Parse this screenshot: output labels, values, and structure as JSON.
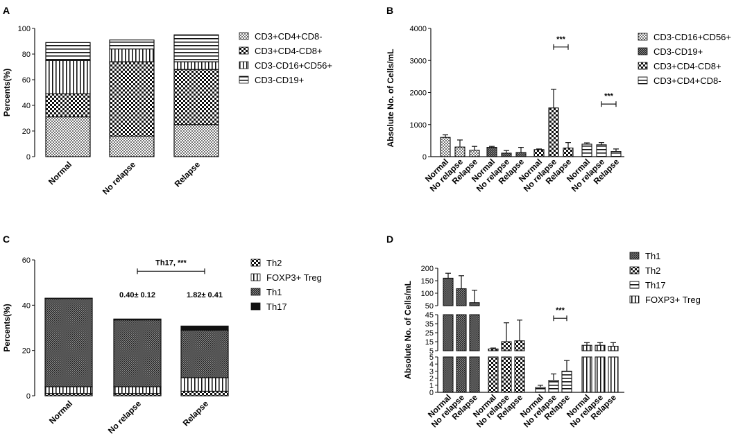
{
  "panels": {
    "a": {
      "label": "A"
    },
    "b": {
      "label": "B"
    },
    "c": {
      "label": "C"
    },
    "d": {
      "label": "D"
    }
  },
  "colors": {
    "ink": "#111111",
    "fill": "#ffffff",
    "solid": "#111111"
  },
  "chart_data": [
    {
      "id": "A",
      "type": "bar",
      "stacked": true,
      "title": "",
      "xlabel": "",
      "ylabel": "Percents(%)",
      "ylim": [
        0,
        100
      ],
      "yticks": [
        0,
        20,
        40,
        60,
        80,
        100
      ],
      "categories": [
        "Normal",
        "No relapse",
        "Relapse"
      ],
      "series": [
        {
          "name": "CD3+CD4+CD8-",
          "pattern": "dots",
          "values": [
            31,
            16,
            25
          ]
        },
        {
          "name": "CD3+CD4-CD8+",
          "pattern": "checker",
          "values": [
            18,
            58,
            43
          ]
        },
        {
          "name": "CD3-CD16+CD56+",
          "pattern": "vlines",
          "values": [
            26,
            10,
            6
          ]
        },
        {
          "name": "CD3-CD19+",
          "pattern": "hlines",
          "values": [
            14,
            7,
            21
          ]
        }
      ],
      "legend": [
        "CD3+CD4+CD8-",
        "CD3+CD4-CD8+",
        "CD3-CD16+CD56+",
        "CD3-CD19+"
      ],
      "legend_patterns": [
        "dots",
        "checker",
        "vlines",
        "hlines"
      ]
    },
    {
      "id": "B",
      "type": "bar",
      "title": "",
      "xlabel": "",
      "ylabel": "Absolute No. of Cells/mL",
      "ylim": [
        0,
        4000
      ],
      "yticks": [
        0,
        1000,
        2000,
        3000,
        4000
      ],
      "groups": [
        {
          "name": "CD3-CD16+CD56+",
          "pattern": "dots",
          "categories": [
            "Normal",
            "No relapse",
            "Relapse"
          ],
          "values": [
            600,
            300,
            200
          ],
          "errors": [
            80,
            220,
            120
          ]
        },
        {
          "name": "CD3-CD19+",
          "pattern": "dense",
          "categories": [
            "Normal",
            "No relapse",
            "Relapse"
          ],
          "values": [
            290,
            110,
            130
          ],
          "errors": [
            30,
            80,
            160
          ]
        },
        {
          "name": "CD3+CD4-CD8+",
          "pattern": "checker",
          "categories": [
            "Normal",
            "No relapse",
            "Relapse"
          ],
          "values": [
            220,
            1520,
            270
          ],
          "errors": [
            20,
            580,
            170
          ]
        },
        {
          "name": "CD3+CD4+CD8-",
          "pattern": "hlines",
          "categories": [
            "Normal",
            "No relapse",
            "Relapse"
          ],
          "values": [
            390,
            370,
            160
          ],
          "errors": [
            40,
            70,
            80
          ]
        }
      ],
      "significance": [
        {
          "group": 2,
          "from": 1,
          "to": 2,
          "y": 3420,
          "text": "***"
        },
        {
          "group": 3,
          "from": 1,
          "to": 2,
          "y": 1640,
          "text": "***"
        }
      ],
      "legend": [
        "CD3-CD16+CD56+",
        "CD3-CD19+",
        "CD3+CD4-CD8+",
        "CD3+CD4+CD8-"
      ],
      "legend_patterns": [
        "dots",
        "dense",
        "checker",
        "hlines"
      ]
    },
    {
      "id": "C",
      "type": "bar",
      "stacked": true,
      "title": "",
      "xlabel": "",
      "ylabel": "Percents(%)",
      "ylim": [
        0,
        60
      ],
      "yticks": [
        0,
        20,
        40,
        60
      ],
      "categories": [
        "Normal",
        "No relapse",
        "Relapse"
      ],
      "series": [
        {
          "name": "Th2",
          "pattern": "checker",
          "values": [
            1,
            1,
            2
          ]
        },
        {
          "name": "FOXP3+ Treg",
          "pattern": "vlines",
          "values": [
            3,
            3,
            6
          ]
        },
        {
          "name": "Th1",
          "pattern": "dense",
          "values": [
            39,
            29.5,
            21
          ]
        },
        {
          "name": "Th17",
          "pattern": "solid",
          "values": [
            0.1,
            0.4,
            1.8
          ]
        }
      ],
      "annotations": [
        {
          "text": "0.40± 0.12",
          "category": 1,
          "y": 43.5
        },
        {
          "text": "1.82± 0.41",
          "category": 2,
          "y": 43.5
        }
      ],
      "significance": [
        {
          "from": 1,
          "to": 2,
          "y": 55,
          "text": "Th17, ***"
        }
      ],
      "legend": [
        "Th2",
        "FOXP3+ Treg",
        "Th1",
        "Th17"
      ],
      "legend_patterns": [
        "checker",
        "vlines",
        "dense",
        "solid"
      ]
    },
    {
      "id": "D",
      "type": "bar",
      "broken_axis": true,
      "title": "",
      "xlabel": "",
      "ylabel": "Absolute No. of Cells/mL",
      "segments": [
        {
          "range": [
            0,
            5
          ],
          "ticks": [
            0,
            1,
            2,
            3,
            4,
            5
          ]
        },
        {
          "range": [
            5,
            45
          ],
          "ticks": [
            5,
            15,
            25,
            35,
            45
          ]
        },
        {
          "range": [
            50,
            200
          ],
          "ticks": [
            50,
            100,
            150,
            200
          ]
        }
      ],
      "groups": [
        {
          "name": "Th1",
          "pattern": "dense",
          "categories": [
            "Normal",
            "No relapse",
            "Relapse"
          ],
          "values": [
            160,
            118,
            62
          ],
          "errors": [
            20,
            52,
            50
          ]
        },
        {
          "name": "Th2",
          "pattern": "checker",
          "categories": [
            "Normal",
            "No relapse",
            "Relapse"
          ],
          "values": [
            7,
            15,
            16
          ],
          "errors": [
            1,
            21,
            23
          ]
        },
        {
          "name": "Th17",
          "pattern": "hlines",
          "categories": [
            "Normal",
            "No relapse",
            "Relapse"
          ],
          "values": [
            0.7,
            1.7,
            3.0
          ],
          "errors": [
            0.3,
            0.9,
            1.5
          ]
        },
        {
          "name": "FOXP3+ Treg",
          "pattern": "vlines",
          "categories": [
            "Normal",
            "No relapse",
            "Relapse"
          ],
          "values": [
            11,
            11,
            10
          ],
          "errors": [
            3,
            3,
            4
          ]
        }
      ],
      "significance": [
        {
          "group": 2,
          "from": 1,
          "to": 2,
          "y": 27,
          "text": "***"
        }
      ],
      "legend": [
        "Th1",
        "Th2",
        "Th17",
        "FOXP3+ Treg"
      ],
      "legend_patterns": [
        "dense",
        "checker",
        "hlines",
        "vlines"
      ]
    }
  ]
}
